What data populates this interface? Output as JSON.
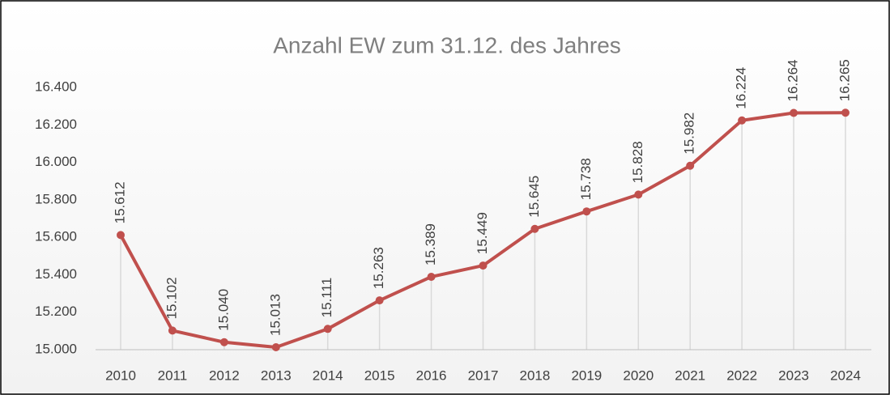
{
  "chart_data": {
    "type": "line",
    "title": "Anzahl EW zum 31.12. des Jahres",
    "categories": [
      "2010",
      "2011",
      "2012",
      "2013",
      "2014",
      "2015",
      "2016",
      "2017",
      "2018",
      "2019",
      "2020",
      "2021",
      "2022",
      "2023",
      "2024"
    ],
    "series": [
      {
        "name": "Anzahl EW",
        "color": "#c0504d",
        "values": [
          15612,
          15102,
          15040,
          15013,
          15111,
          15263,
          15389,
          15449,
          15645,
          15738,
          15828,
          15982,
          16224,
          16264,
          16265
        ],
        "value_labels": [
          "15.612",
          "15.102",
          "15.040",
          "15.013",
          "15.111",
          "15.263",
          "15.389",
          "15.449",
          "15.645",
          "15.738",
          "15.828",
          "15.982",
          "16.224",
          "16.264",
          "16.265"
        ]
      }
    ],
    "ylim": [
      15000,
      16400
    ],
    "yticks": [
      {
        "value": 15000,
        "label": "15.000"
      },
      {
        "value": 15200,
        "label": "15.200"
      },
      {
        "value": 15400,
        "label": "15.400"
      },
      {
        "value": 15600,
        "label": "15.600"
      },
      {
        "value": 15800,
        "label": "15.800"
      },
      {
        "value": 16000,
        "label": "16.000"
      },
      {
        "value": 16200,
        "label": "16.200"
      },
      {
        "value": 16400,
        "label": "16.400"
      }
    ],
    "drop_lines": true
  }
}
